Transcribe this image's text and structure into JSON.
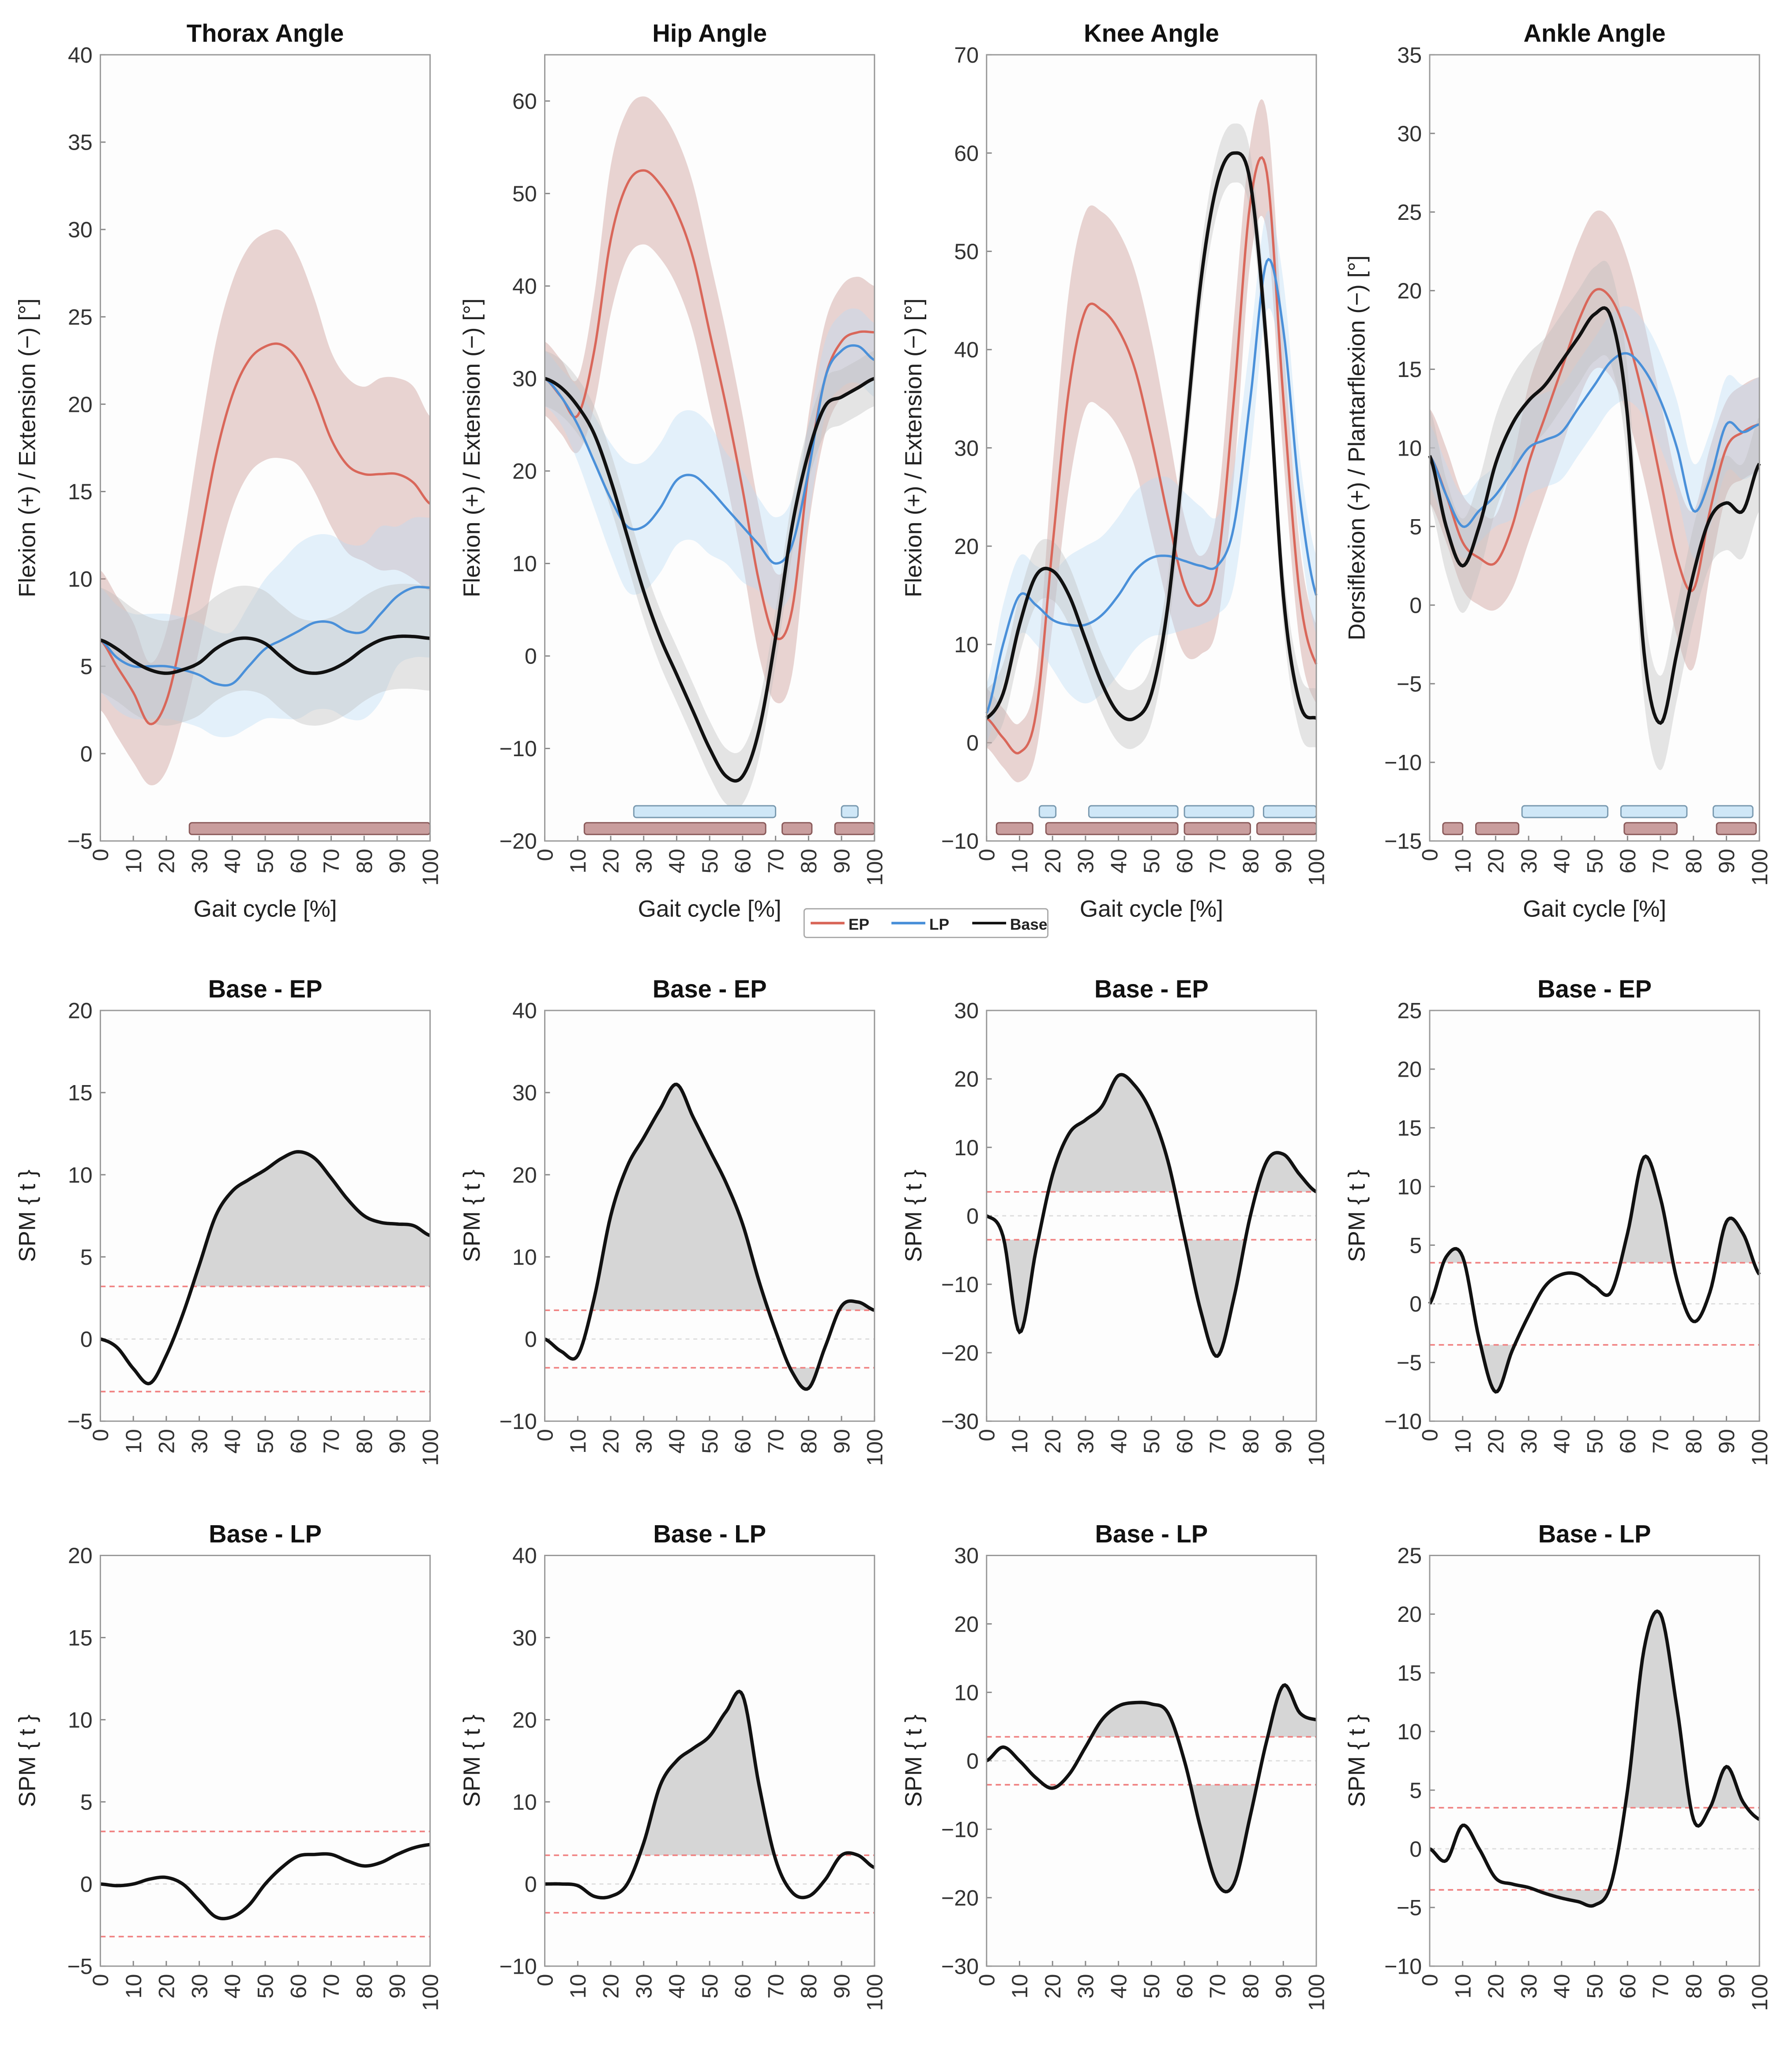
{
  "colors": {
    "EP": "#d9675a",
    "LP": "#4a90d9",
    "Base": "#111111",
    "EP_band": "#c8938e",
    "LP_band": "#bcdcf5",
    "Base_band": "#bdbdbd",
    "EP_sig": "#c99e9e",
    "LP_sig": "#cfe7f7",
    "threshold": "#f08080",
    "suprathreshold_fill": "#d6d6d6"
  },
  "legend": {
    "entries": [
      "EP",
      "LP",
      "Base"
    ],
    "placement": "bottom-center of top row"
  },
  "chart_data": [
    {
      "type": "line",
      "title": "Thorax Angle",
      "xlabel": "Gait cycle [%]",
      "ylabel": "Flexion (+) / Extension (−) [°]",
      "ylim": [
        -5,
        40
      ],
      "ytick_step": 5,
      "xlim": [
        0,
        100
      ],
      "x": [
        0,
        5,
        10,
        15,
        20,
        25,
        30,
        35,
        40,
        45,
        50,
        55,
        60,
        65,
        70,
        75,
        80,
        85,
        90,
        95,
        100
      ],
      "series": [
        {
          "name": "EP",
          "mean": [
            6.5,
            5,
            3.5,
            1.7,
            3,
            7,
            12,
            17,
            20.5,
            22.5,
            23.3,
            23.4,
            22.5,
            20.5,
            18,
            16.5,
            16,
            16,
            16,
            15.5,
            14.3
          ],
          "sd": [
            4,
            4,
            4,
            3.5,
            4,
            5,
            6,
            6.5,
            6.5,
            6.5,
            6.5,
            6.5,
            6,
            5.5,
            5,
            5,
            5,
            5.5,
            5.5,
            5.5,
            5
          ]
        },
        {
          "name": "LP",
          "mean": [
            6.5,
            5.5,
            5,
            5,
            5,
            4.8,
            4.5,
            4,
            4,
            5,
            6,
            6.5,
            7,
            7.5,
            7.5,
            7,
            7,
            8,
            9,
            9.5,
            9.5
          ],
          "sd": [
            3,
            3,
            3,
            3,
            3,
            3,
            3,
            3,
            3,
            3.5,
            4,
            4.5,
            5,
            5,
            5,
            5,
            5,
            5,
            4,
            4,
            4
          ]
        },
        {
          "name": "Base",
          "mean": [
            6.5,
            6,
            5.3,
            4.8,
            4.6,
            4.8,
            5.2,
            6,
            6.5,
            6.6,
            6.3,
            5.5,
            4.8,
            4.6,
            4.8,
            5.3,
            6,
            6.5,
            6.7,
            6.7,
            6.6
          ],
          "sd": [
            3,
            3,
            3,
            3,
            3,
            3,
            3,
            3,
            3,
            3,
            3,
            3,
            3,
            3,
            3,
            3,
            3,
            3,
            3,
            3,
            3
          ]
        }
      ],
      "significance": {
        "EP": [
          [
            27,
            100
          ]
        ],
        "LP": []
      }
    },
    {
      "type": "line",
      "title": "Hip Angle",
      "xlabel": "Gait cycle [%]",
      "ylabel": "Flexion (+) / Extension (−) [°]",
      "ylim": [
        -20,
        65
      ],
      "ytick_step": 10,
      "xlim": [
        0,
        100
      ],
      "x": [
        0,
        5,
        10,
        15,
        20,
        25,
        30,
        35,
        40,
        45,
        50,
        55,
        60,
        65,
        70,
        75,
        80,
        85,
        90,
        95,
        100
      ],
      "series": [
        {
          "name": "EP",
          "mean": [
            30,
            28,
            26,
            33,
            45,
            51,
            52.5,
            51,
            48,
            43,
            35,
            27,
            18,
            8,
            2,
            5,
            20,
            30,
            34,
            35,
            35
          ],
          "sd": [
            4,
            4,
            4,
            6,
            8,
            8,
            8,
            8,
            8,
            8,
            8,
            8,
            8,
            8,
            7,
            7,
            6,
            6,
            6,
            6,
            5
          ]
        },
        {
          "name": "LP",
          "mean": [
            30,
            28,
            25,
            21,
            17,
            14,
            14,
            16,
            19,
            19.5,
            18,
            16,
            14,
            12,
            10,
            12,
            20,
            30,
            33,
            33.5,
            32
          ],
          "sd": [
            3,
            3,
            4,
            5,
            6,
            7,
            7,
            7,
            7,
            7,
            7,
            6,
            6,
            5,
            5,
            5,
            5,
            4,
            4,
            4,
            4
          ]
        },
        {
          "name": "Base",
          "mean": [
            30,
            29,
            27,
            24,
            19,
            13,
            7,
            2,
            -2,
            -6,
            -10,
            -13,
            -13,
            -8,
            2,
            14,
            22,
            27,
            28,
            29,
            30
          ],
          "sd": [
            3,
            3,
            3,
            3,
            3,
            3,
            3,
            3,
            3,
            3,
            3,
            3,
            3,
            3,
            3,
            3,
            3,
            3,
            3,
            3,
            3
          ]
        }
      ],
      "significance": {
        "EP": [
          [
            12,
            67
          ],
          [
            72,
            81
          ],
          [
            88,
            100
          ]
        ],
        "LP": [
          [
            27,
            70
          ],
          [
            90,
            95
          ]
        ]
      }
    },
    {
      "type": "line",
      "title": "Knee Angle",
      "xlabel": "Gait cycle [%]",
      "ylabel": "Flexion (+) / Extension (−) [°]",
      "ylim": [
        -10,
        70
      ],
      "ytick_step": 10,
      "xlim": [
        0,
        100
      ],
      "x": [
        0,
        5,
        10,
        15,
        20,
        25,
        30,
        35,
        40,
        45,
        50,
        55,
        60,
        65,
        70,
        75,
        80,
        85,
        90,
        95,
        100
      ],
      "series": [
        {
          "name": "EP",
          "mean": [
            2.5,
            0.5,
            -1,
            3,
            20,
            36,
            44,
            44,
            42,
            38,
            31,
            23,
            16,
            14,
            18,
            35,
            55,
            58,
            35,
            15,
            8
          ],
          "sd": [
            3,
            3,
            3,
            4,
            8,
            10,
            10,
            10,
            10,
            10,
            10,
            9,
            7,
            5,
            6,
            8,
            6,
            6,
            6,
            5,
            4
          ]
        },
        {
          "name": "LP",
          "mean": [
            3,
            10,
            15,
            14,
            12.5,
            12,
            12,
            13,
            15,
            17.5,
            18.8,
            19,
            18.5,
            18,
            18,
            22,
            35,
            49,
            42,
            25,
            15
          ],
          "sd": [
            3,
            4,
            4,
            4,
            5,
            7,
            8,
            8,
            8,
            8,
            8,
            8,
            7,
            6,
            5,
            6,
            6,
            5,
            5,
            4,
            4
          ]
        },
        {
          "name": "Base",
          "mean": [
            2.5,
            5,
            12,
            17,
            17.5,
            15,
            10.5,
            6,
            3,
            2.5,
            5,
            14,
            30,
            47,
            57,
            60,
            57,
            40,
            15,
            4,
            2.5
          ],
          "sd": [
            3,
            3,
            3,
            3,
            3,
            3,
            3,
            3,
            3,
            3,
            3,
            3,
            3,
            3,
            3,
            3,
            3,
            3,
            3,
            3,
            3
          ]
        }
      ],
      "significance": {
        "EP": [
          [
            3,
            14
          ],
          [
            18,
            58
          ],
          [
            60,
            80
          ],
          [
            82,
            100
          ]
        ],
        "LP": [
          [
            16,
            21
          ],
          [
            31,
            58
          ],
          [
            60,
            81
          ],
          [
            84,
            100
          ]
        ]
      }
    },
    {
      "type": "line",
      "title": "Ankle Angle",
      "xlabel": "Gait cycle [%]",
      "ylabel": "Dorsiflexion (+) / Plantarflexion (−) [°]",
      "ylim": [
        -15,
        35
      ],
      "ytick_step": 5,
      "xlim": [
        0,
        100
      ],
      "x": [
        0,
        5,
        10,
        15,
        20,
        25,
        30,
        35,
        40,
        45,
        50,
        55,
        60,
        65,
        70,
        75,
        80,
        85,
        90,
        95,
        100
      ],
      "series": [
        {
          "name": "EP",
          "mean": [
            9.5,
            7,
            4,
            3,
            2.7,
            5,
            9,
            12,
            15,
            18,
            20,
            19.5,
            17,
            13,
            8,
            3,
            1,
            6,
            10,
            11,
            11.5
          ],
          "sd": [
            3,
            3,
            3,
            3,
            3,
            4,
            5,
            5,
            5,
            5,
            5,
            5,
            5,
            5,
            5,
            5,
            5,
            4,
            3,
            3,
            3
          ]
        },
        {
          "name": "LP",
          "mean": [
            9.5,
            7,
            5,
            6,
            7,
            8.5,
            10,
            10.5,
            11,
            12.5,
            14,
            15.5,
            16,
            15,
            13,
            10,
            6,
            8,
            11.5,
            11,
            11.5
          ],
          "sd": [
            2,
            2,
            2,
            2,
            2,
            3,
            3,
            3,
            3,
            3,
            3,
            3,
            3,
            3,
            3,
            3,
            3,
            3,
            3,
            3,
            3
          ]
        },
        {
          "name": "Base",
          "mean": [
            9.5,
            5,
            2.5,
            5,
            9,
            11.5,
            13,
            14,
            15.5,
            17,
            18.5,
            18.3,
            12,
            -3,
            -7.5,
            -3,
            2,
            5.5,
            6.5,
            6,
            9
          ],
          "sd": [
            3,
            3,
            3,
            3,
            3,
            3,
            3,
            3,
            3,
            3,
            3,
            3,
            3,
            3,
            3,
            3,
            3,
            3,
            3,
            3,
            3
          ]
        }
      ],
      "significance": {
        "EP": [
          [
            4,
            10
          ],
          [
            14,
            27
          ],
          [
            59,
            75
          ],
          [
            87,
            99
          ]
        ],
        "LP": [
          [
            28,
            54
          ],
          [
            58,
            78
          ],
          [
            86,
            98
          ]
        ]
      }
    },
    {
      "type": "line",
      "title": "Base - EP",
      "ylabel": "SPM { t }",
      "ylim": [
        -5,
        20
      ],
      "ytick_step": 5,
      "xlim": [
        0,
        100
      ],
      "x": [
        0,
        5,
        10,
        15,
        20,
        25,
        30,
        35,
        40,
        45,
        50,
        55,
        60,
        65,
        70,
        75,
        80,
        85,
        90,
        95,
        100
      ],
      "t": [
        0,
        -0.5,
        -1.8,
        -2.7,
        -1,
        1.5,
        4.5,
        7.5,
        9,
        9.7,
        10.3,
        11,
        11.4,
        11,
        9.8,
        8.5,
        7.5,
        7.1,
        7,
        6.9,
        6.3
      ],
      "threshold": 3.2
    },
    {
      "type": "line",
      "title": "Base - EP",
      "ylabel": "SPM { t }",
      "ylim": [
        -10,
        40
      ],
      "ytick_step": 10,
      "xlim": [
        0,
        100
      ],
      "x": [
        0,
        5,
        10,
        15,
        20,
        25,
        30,
        35,
        40,
        45,
        50,
        55,
        60,
        65,
        70,
        75,
        80,
        85,
        90,
        95,
        100
      ],
      "t": [
        0,
        -1.5,
        -2,
        5,
        15,
        21,
        24.5,
        28,
        31,
        27,
        23,
        19,
        14,
        7,
        1,
        -4,
        -6,
        -1,
        4,
        4.5,
        3.5
      ],
      "threshold": 3.5
    },
    {
      "type": "line",
      "title": "Base - EP",
      "ylabel": "SPM { t }",
      "ylim": [
        -30,
        30
      ],
      "ytick_step": 10,
      "xlim": [
        0,
        100
      ],
      "x": [
        0,
        5,
        10,
        15,
        20,
        25,
        30,
        35,
        40,
        45,
        50,
        55,
        60,
        65,
        70,
        75,
        80,
        85,
        90,
        95,
        100
      ],
      "t": [
        0,
        -3,
        -17,
        -5,
        6,
        12,
        14,
        16,
        20.5,
        19,
        15,
        8,
        -3,
        -14,
        -20.5,
        -12,
        0,
        8,
        9,
        6,
        3.5
      ],
      "threshold": 3.5
    },
    {
      "type": "line",
      "title": "Base - EP",
      "ylabel": "SPM { t }",
      "ylim": [
        -10,
        25
      ],
      "ytick_step": 5,
      "xlim": [
        0,
        100
      ],
      "x": [
        0,
        5,
        10,
        15,
        20,
        25,
        30,
        35,
        40,
        45,
        50,
        55,
        60,
        65,
        70,
        75,
        80,
        85,
        90,
        95,
        100
      ],
      "t": [
        0,
        4,
        4,
        -3,
        -7.5,
        -4,
        -1,
        1.5,
        2.5,
        2.5,
        1.5,
        1,
        6,
        12.5,
        9,
        2,
        -1.5,
        1,
        7,
        6,
        2.5
      ],
      "threshold": 3.5
    },
    {
      "type": "line",
      "title": "Base - LP",
      "ylabel": "SPM { t }",
      "ylim": [
        -5,
        20
      ],
      "ytick_step": 5,
      "xlim": [
        0,
        100
      ],
      "x": [
        0,
        5,
        10,
        15,
        20,
        25,
        30,
        35,
        40,
        45,
        50,
        55,
        60,
        65,
        70,
        75,
        80,
        85,
        90,
        95,
        100
      ],
      "t": [
        0,
        -0.1,
        0,
        0.3,
        0.4,
        0,
        -1,
        -2,
        -2,
        -1.3,
        0,
        1,
        1.7,
        1.8,
        1.8,
        1.4,
        1.1,
        1.3,
        1.8,
        2.2,
        2.4
      ],
      "threshold": 3.2
    },
    {
      "type": "line",
      "title": "Base - LP",
      "ylabel": "SPM { t }",
      "ylim": [
        -10,
        40
      ],
      "ytick_step": 10,
      "xlim": [
        0,
        100
      ],
      "x": [
        0,
        5,
        10,
        15,
        20,
        25,
        30,
        35,
        40,
        45,
        50,
        55,
        60,
        65,
        70,
        75,
        80,
        85,
        90,
        95,
        100
      ],
      "t": [
        0,
        0,
        -0.2,
        -1.5,
        -1.5,
        0,
        5,
        12,
        15,
        16.5,
        18,
        21,
        23,
        12,
        3,
        -1,
        -1.5,
        0.5,
        3.5,
        3.5,
        2
      ],
      "threshold": 3.5
    },
    {
      "type": "line",
      "title": "Base - LP",
      "ylabel": "SPM { t }",
      "ylim": [
        -30,
        30
      ],
      "ytick_step": 10,
      "xlim": [
        0,
        100
      ],
      "x": [
        0,
        5,
        10,
        15,
        20,
        25,
        30,
        35,
        40,
        45,
        50,
        55,
        60,
        65,
        70,
        75,
        80,
        85,
        90,
        95,
        100
      ],
      "t": [
        0,
        2,
        0,
        -2.5,
        -4,
        -2,
        2,
        6,
        8,
        8.5,
        8.3,
        7,
        0,
        -10,
        -18,
        -18,
        -8,
        3,
        11,
        7,
        6
      ],
      "threshold": 3.5
    },
    {
      "type": "line",
      "title": "Base - LP",
      "ylabel": "SPM { t }",
      "ylim": [
        -10,
        25
      ],
      "ytick_step": 5,
      "xlim": [
        0,
        100
      ],
      "x": [
        0,
        5,
        10,
        15,
        20,
        25,
        30,
        35,
        40,
        45,
        50,
        55,
        60,
        65,
        70,
        75,
        80,
        85,
        90,
        95,
        100
      ],
      "t": [
        0,
        -1,
        2,
        0,
        -2.5,
        -3,
        -3.3,
        -3.8,
        -4.2,
        -4.5,
        -4.8,
        -3,
        5,
        17,
        20,
        12,
        2.5,
        3.5,
        7,
        4,
        2.5
      ],
      "threshold": 3.5
    }
  ]
}
